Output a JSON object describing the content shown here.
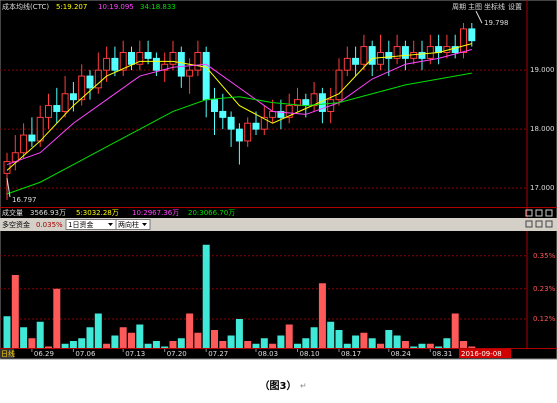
{
  "chart_data": [
    {
      "type": "candlestick",
      "title": "成本均线(CTC)",
      "toolbar": [
        "周期",
        "主图",
        "坐标线",
        "设置"
      ],
      "open": [
        17.25,
        17.45,
        17.6,
        17.9,
        17.8,
        18.2,
        18.4,
        18.3,
        18.6,
        18.5,
        18.9,
        18.7,
        19.0,
        19.2,
        19.0,
        19.3,
        19.1,
        19.3,
        19.2,
        19.0,
        19.1,
        19.3,
        18.9,
        19.0,
        19.3,
        18.5,
        18.3,
        18.2,
        18.0,
        17.8,
        18.1,
        18.0,
        18.2,
        18.3,
        18.2,
        18.4,
        18.5,
        18.4,
        18.6,
        18.3,
        18.5,
        19.0,
        19.2,
        19.1,
        19.4,
        19.1,
        19.3,
        19.2,
        19.4,
        19.2,
        19.3,
        19.2,
        19.4,
        19.3,
        19.4,
        19.3,
        19.7
      ],
      "close": [
        17.45,
        17.6,
        17.9,
        17.8,
        18.2,
        18.4,
        18.3,
        18.6,
        18.5,
        18.9,
        18.7,
        19.0,
        19.2,
        19.0,
        19.3,
        19.1,
        19.3,
        19.2,
        19.0,
        19.1,
        19.3,
        18.9,
        19.0,
        19.3,
        18.5,
        18.3,
        18.2,
        18.0,
        17.8,
        18.1,
        18.0,
        18.2,
        18.3,
        18.2,
        18.4,
        18.5,
        18.4,
        18.6,
        18.3,
        18.5,
        19.0,
        19.2,
        19.1,
        19.4,
        19.1,
        19.3,
        19.2,
        19.4,
        19.2,
        19.3,
        19.2,
        19.4,
        19.3,
        19.4,
        19.3,
        19.7,
        19.5
      ],
      "high": [
        17.6,
        17.9,
        18.1,
        18.2,
        18.4,
        18.6,
        18.7,
        18.9,
        18.8,
        19.1,
        19.0,
        19.3,
        19.4,
        19.4,
        19.5,
        19.4,
        19.5,
        19.5,
        19.3,
        19.3,
        19.5,
        19.4,
        19.2,
        19.5,
        19.4,
        18.7,
        18.6,
        18.3,
        18.1,
        18.2,
        18.3,
        18.4,
        18.5,
        18.5,
        18.6,
        18.7,
        18.6,
        18.8,
        18.7,
        18.7,
        19.2,
        19.4,
        19.4,
        19.6,
        19.5,
        19.6,
        19.5,
        19.6,
        19.5,
        19.5,
        19.5,
        19.6,
        19.6,
        19.6,
        19.6,
        19.8,
        19.8
      ],
      "low": [
        16.8,
        17.3,
        17.5,
        17.7,
        17.7,
        18.0,
        18.1,
        18.2,
        18.3,
        18.4,
        18.5,
        18.6,
        18.8,
        18.9,
        18.9,
        19.0,
        19.0,
        19.1,
        18.9,
        18.8,
        19.0,
        18.7,
        18.6,
        18.9,
        18.2,
        17.9,
        18.0,
        17.7,
        17.4,
        17.7,
        17.9,
        17.9,
        18.1,
        18.0,
        18.1,
        18.3,
        18.2,
        18.3,
        18.1,
        18.1,
        18.4,
        18.9,
        18.9,
        19.0,
        18.9,
        19.0,
        18.9,
        19.1,
        19.0,
        19.1,
        19.0,
        19.1,
        19.1,
        19.2,
        19.2,
        19.2,
        19.4
      ],
      "up_color": "#ff3c3c",
      "down_color": "#54ffff",
      "ylim": [
        16.68,
        20.19
      ],
      "yticks": [
        {
          "value": 19,
          "label": "19.000"
        },
        {
          "value": 18,
          "label": "18.000"
        },
        {
          "value": 17,
          "label": "17.000"
        }
      ],
      "grid": true,
      "series": [
        {
          "name": "5:19.207",
          "color": "#ffff00",
          "x": [
            0,
            4,
            8,
            12,
            16,
            20,
            24,
            28,
            32,
            36,
            40,
            44,
            48,
            52,
            56
          ],
          "values": [
            17.3,
            17.8,
            18.4,
            18.9,
            19.15,
            19.15,
            19.05,
            18.4,
            18.1,
            18.35,
            18.6,
            19.2,
            19.25,
            19.3,
            19.45
          ]
        },
        {
          "name": "10:19.095",
          "color": "#ff44ff",
          "x": [
            0,
            4,
            8,
            12,
            16,
            20,
            24,
            28,
            32,
            36,
            40,
            44,
            48,
            52,
            56
          ],
          "values": [
            17.4,
            17.6,
            18.1,
            18.5,
            18.9,
            19.05,
            19.1,
            18.7,
            18.3,
            18.25,
            18.45,
            18.85,
            19.1,
            19.2,
            19.35
          ]
        },
        {
          "name": "34:18.833",
          "color": "#00e000",
          "x": [
            0,
            4,
            8,
            12,
            16,
            20,
            24,
            28,
            32,
            36,
            40,
            44,
            48,
            52,
            56
          ],
          "values": [
            16.9,
            17.1,
            17.4,
            17.7,
            18.0,
            18.3,
            18.5,
            18.55,
            18.45,
            18.4,
            18.45,
            18.6,
            18.75,
            18.85,
            18.95
          ]
        }
      ],
      "max": 19.798,
      "min": 16.797
    },
    {
      "type": "bar",
      "header": [
        "成交量",
        "3566.93万",
        "5:3032.28万",
        "10:2967.36万",
        "20:3066.70万"
      ],
      "header_colors": [
        "#dddddd",
        "#dddddd",
        "#ffff00",
        "#ff44ff",
        "#00e000"
      ],
      "title": "多空资金",
      "value_text": "0.035%",
      "selectors": [
        "1日资金",
        "两向柱"
      ],
      "ylim": [
        0,
        0.44
      ],
      "yticks": [
        {
          "value": 0.35,
          "label": "0.35%"
        },
        {
          "value": 0.23,
          "label": "0.23%"
        },
        {
          "value": 0.12,
          "label": "0.12%"
        }
      ],
      "grid": true,
      "series": [
        {
          "color": "#ff5a5a",
          "values": [
            null,
            0.28,
            null,
            0.05,
            null,
            0.02,
            0.23,
            null,
            null,
            null,
            null,
            null,
            0.03,
            null,
            0.09,
            0.07,
            null,
            null,
            null,
            null,
            0.04,
            null,
            0.14,
            0.07,
            null,
            0.08,
            0.04,
            null,
            null,
            0.04,
            null,
            null,
            0.03,
            null,
            0.1,
            null,
            null,
            null,
            0.25,
            null,
            null,
            null,
            null,
            0.07,
            null,
            0.03,
            null,
            null,
            0.04,
            null,
            null,
            0.03,
            null,
            null,
            0.14,
            0.04,
            0.02
          ]
        },
        {
          "color": "#40e8d8",
          "values": [
            0.13,
            null,
            0.09,
            null,
            0.11,
            null,
            null,
            0.03,
            0.04,
            0.05,
            0.09,
            0.14,
            null,
            0.06,
            null,
            null,
            0.1,
            0.03,
            0.04,
            0.02,
            null,
            0.05,
            null,
            null,
            0.39,
            null,
            null,
            0.06,
            0.12,
            null,
            0.03,
            0.05,
            null,
            0.06,
            null,
            0.03,
            0.05,
            0.09,
            null,
            0.11,
            0.08,
            0.03,
            0.06,
            null,
            0.05,
            null,
            0.08,
            0.06,
            null,
            0.02,
            0.03,
            null,
            0.02,
            0.05,
            null,
            null,
            null
          ]
        }
      ],
      "period_label": "日线",
      "xticks": [
        {
          "value": 3,
          "label": "06.29"
        },
        {
          "value": 8,
          "label": "07.06"
        },
        {
          "value": 14,
          "label": "07.13"
        },
        {
          "value": 19,
          "label": "07.20"
        },
        {
          "value": 24,
          "label": "07.27"
        },
        {
          "value": 30,
          "label": "08.03"
        },
        {
          "value": 35,
          "label": "08.10"
        },
        {
          "value": 40,
          "label": "08.17"
        },
        {
          "value": 46,
          "label": "08.24"
        },
        {
          "value": 51,
          "label": "08.31"
        }
      ],
      "current_date": "2016-09-08"
    }
  ],
  "caption": "（图3）"
}
